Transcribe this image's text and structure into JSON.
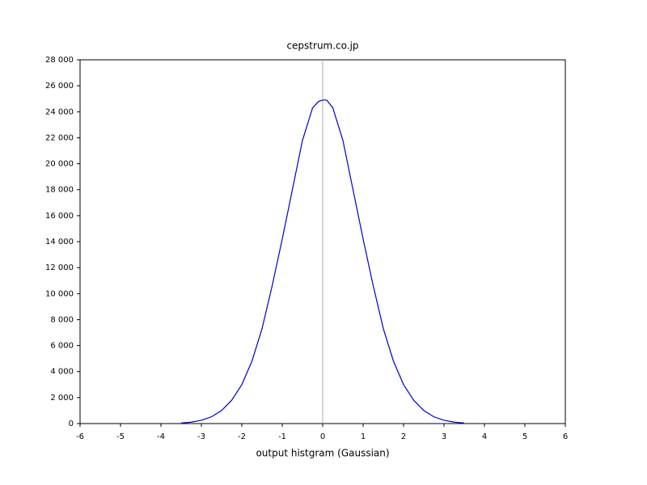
{
  "chart_data": {
    "type": "line",
    "title": "cepstrum.co.jp",
    "xlabel": "output histgram (Gaussian)",
    "x": [
      -3.5,
      -3.25,
      -3,
      -2.75,
      -2.5,
      -2.25,
      -2,
      -1.75,
      -1.5,
      -1.25,
      -1,
      -0.75,
      -0.5,
      -0.25,
      -0.1,
      0,
      0.1,
      0.25,
      0.5,
      0.75,
      1,
      1.25,
      1.5,
      1.75,
      2,
      2.25,
      2.5,
      2.75,
      3,
      3.25,
      3.5
    ],
    "series": [
      {
        "name": "output",
        "color": "#0000cc",
        "values": [
          40,
          110,
          250,
          520,
          1000,
          1800,
          3000,
          4800,
          7300,
          10600,
          14200,
          18000,
          21800,
          24300,
          24800,
          24900,
          24900,
          24300,
          21800,
          18000,
          14200,
          10600,
          7300,
          4800,
          3000,
          1800,
          1000,
          520,
          250,
          110,
          40
        ]
      }
    ],
    "vline": 0,
    "xlim": [
      -6,
      6
    ],
    "xticks": [
      -6,
      -5,
      -4,
      -3,
      -2,
      -1,
      0,
      1,
      2,
      3,
      4,
      5,
      6
    ],
    "ylim": [
      0,
      28000
    ],
    "yticks": [
      0,
      {
        "value": 2000,
        "label": "2 000"
      },
      {
        "value": 4000,
        "label": "4 000"
      },
      {
        "value": 6000,
        "label": "6 000"
      },
      {
        "value": 8000,
        "label": "8 000"
      },
      {
        "value": 10000,
        "label": "10 000"
      },
      {
        "value": 12000,
        "label": "12 000"
      },
      {
        "value": 14000,
        "label": "14 000"
      },
      {
        "value": 16000,
        "label": "16 000"
      },
      {
        "value": 18000,
        "label": "18 000"
      },
      {
        "value": 20000,
        "label": "20 000"
      },
      {
        "value": 22000,
        "label": "22 000"
      },
      {
        "value": 24000,
        "label": "24 000"
      },
      {
        "value": 26000,
        "label": "26 000"
      },
      {
        "value": 28000,
        "label": "28 000"
      }
    ]
  }
}
